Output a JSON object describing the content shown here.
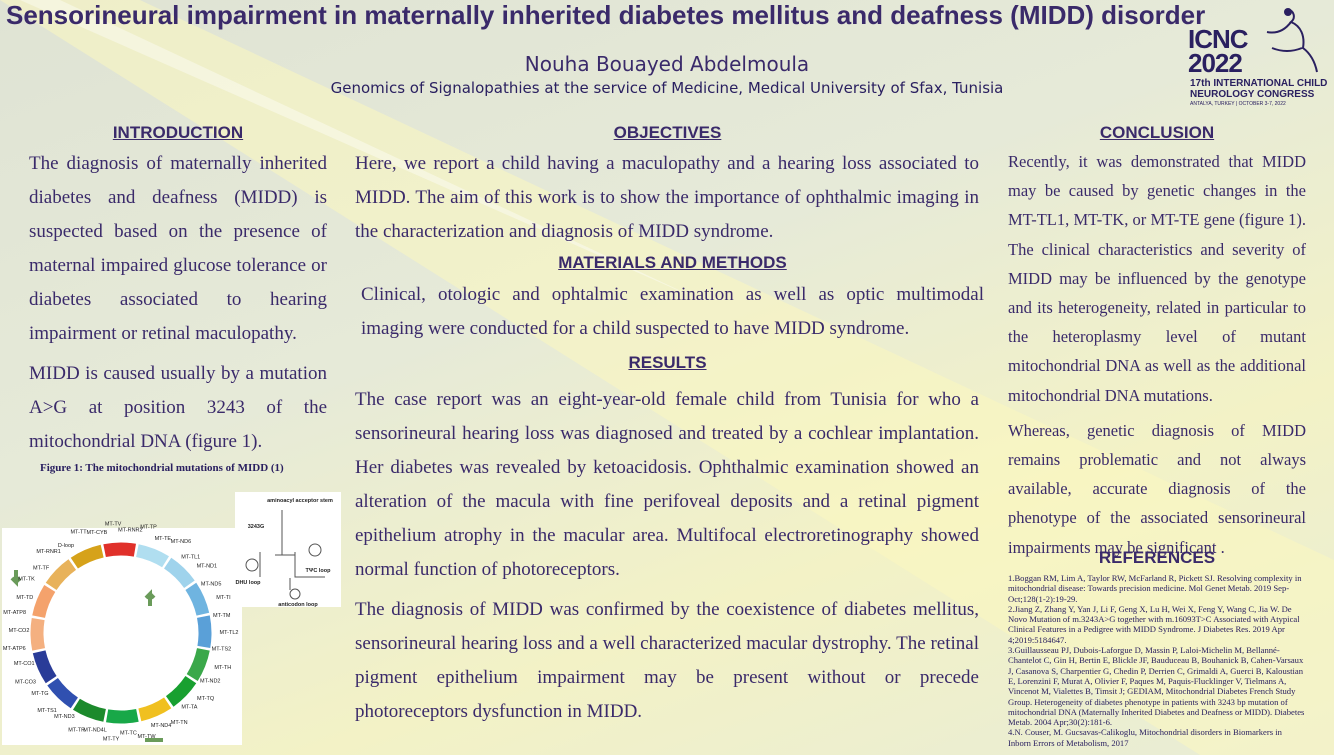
{
  "header": {
    "title": "Sensorineural impairment in maternally inherited diabetes mellitus and deafness (MIDD) disorder",
    "author": "Nouha Bouayed Abdelmoula",
    "affiliation": "Genomics of Signalopathies at the service of Medicine, Medical University of Sfax, Tunisia",
    "logo": {
      "name": "ICNC",
      "year": "2022",
      "congress": "17th INTERNATIONAL CHILD NEUROLOGY CONGRESS",
      "venue": "ANTALYA, TURKEY | OCTOBER 3-7, 2022"
    }
  },
  "introduction": {
    "heading": "INTRODUCTION",
    "paragraphs": [
      "The diagnosis of maternally inherited diabetes and deafness (MIDD) is suspected based on the presence of maternal impaired glucose tolerance or diabetes associated to hearing impairment or retinal maculopathy.",
      "MIDD is caused usually by a mutation A>G at position 3243 of the mitochondrial DNA (figure 1)."
    ],
    "figure_caption": "Figure 1: The mitochondrial  mutations of MIDD (1)"
  },
  "objectives": {
    "heading": "OBJECTIVES",
    "paragraphs": [
      "Here, we report a child having a maculopathy and a hearing loss associated to MIDD. The aim of this work is to show the importance of ophthalmic imaging in the characterization and diagnosis of MIDD syndrome."
    ]
  },
  "methods": {
    "heading": "MATERIALS AND METHODS",
    "paragraphs": [
      "Clinical, otologic and ophtalmic examination as well as optic multimodal imaging were conducted for a child suspected to have MIDD syndrome."
    ]
  },
  "results": {
    "heading": "RESULTS",
    "paragraphs": [
      "The case report was an eight-year-old female child from Tunisia for who a sensorineural hearing loss was diagnosed and treated by a cochlear implantation. Her diabetes was revealed by ketoacidosis. Ophthalmic examination showed an alteration of the macula with fine perifoveal deposits and a retinal pigment epithelium atrophy in the macular area. Multifocal electroretinography showed normal function of photoreceptors.",
      "The diagnosis of MIDD was confirmed by the coexistence of diabetes mellitus, sensorineural hearing loss and a well characterized macular dystrophy. The retinal pigment epithelium impairment may be present without or precede photoreceptors dysfunction in MIDD."
    ]
  },
  "conclusion": {
    "heading": "CONCLUSION",
    "paragraphs": [
      "Recently, it was demonstrated that MIDD may be caused by genetic changes in the MT-TL1, MT-TK, or MT-TE gene (figure 1). The clinical characteristics and severity of MIDD may be influenced by the genotype and its heterogeneity, related in particular to the heteroplasmy level of mutant mitochondrial DNA as well as the additional mitochondrial DNA mutations.",
      "Whereas, genetic diagnosis of MIDD remains problematic and not always available, accurate diagnosis of the phenotype of the associated sensorineural impairments may be significant ."
    ]
  },
  "references": {
    "heading": "REFERENCES",
    "items": [
      {
        "number": "1.",
        "text": "Boggan RM, Lim A, Taylor RW, McFarland R, Pickett SJ. Resolving complexity in mitochondrial disease: Towards precision medicine. Mol Genet Metab. 2019 Sep-Oct;128(1-2):19-29."
      },
      {
        "number": "2.",
        "text": "Jiang Z, Zhang Y, Yan J, Li F, Geng X, Lu H, Wei X, Feng Y, Wang C, Jia W. De Novo Mutation of m.3243A>G together with m.16093T>C Associated with Atypical Clinical Features in a Pedigree with MIDD Syndrome. J Diabetes Res. 2019 Apr 4;2019:5184647."
      },
      {
        "number": "3.",
        "text": "Guillausseau PJ, Dubois-Laforgue D, Massin P, Laloi-Michelin M, Bellanné-Chantelot C, Gin H, Bertin E, Blickle JF, Bauduceau B, Bouhanick B, Cahen-Varsaux J, Casanova S, Charpentier G, Chedin P, Derrien C, Grimaldi A, Guerci B, Kaloustian E, Lorenzini F, Murat A, Olivier F, Paques M, Paquis-Flucklinger V, Tielmans A, Vincenot M, Vialettes B, Timsit J; GEDIAM, Mitochondrial Diabetes French Study Group. Heterogeneity of diabetes phenotype in patients with 3243 bp mutation of mitochondrial DNA (Maternally Inherited Diabetes and Deafness or MIDD). Diabetes Metab. 2004 Apr;30(2):181-6."
      },
      {
        "number": "4.",
        "text": "N. Couser, M. Gucsavas-Calikoglu, Mitochondrial disorders in Biomarkers in Inborn Errors of Metabolism, 2017"
      }
    ]
  },
  "figure": {
    "gene_labels": [
      "MT-TF",
      "MT-RNR1",
      "D-loop",
      "MT-TT",
      "MT-CYB",
      "MT-TV",
      "MT-RNR2",
      "MT-TP",
      "MT-TE",
      "MT-ND6",
      "MT-TL1",
      "MT-ND1",
      "MT-ND5",
      "MT-TI",
      "MT-TM",
      "MT-TL2",
      "MT-TS2",
      "MT-TH",
      "MT-ND2",
      "MT-TQ",
      "MT-TA",
      "MT-TN",
      "MT-ND4",
      "MT-TW",
      "MT-TC",
      "MT-TY",
      "MT-ND4L",
      "MT-TR",
      "MT-ND3",
      "MT-TS1",
      "MT-TG",
      "MT-CO3",
      "MT-CO1",
      "MT-ATP6",
      "MT-CO2",
      "MT-ATP8",
      "MT-TD",
      "MT-TK"
    ],
    "trna_labels": [
      "aminoacyl acceptor stem",
      "3243G",
      "DHU loop",
      "TΨC loop",
      "anticodon loop"
    ]
  }
}
